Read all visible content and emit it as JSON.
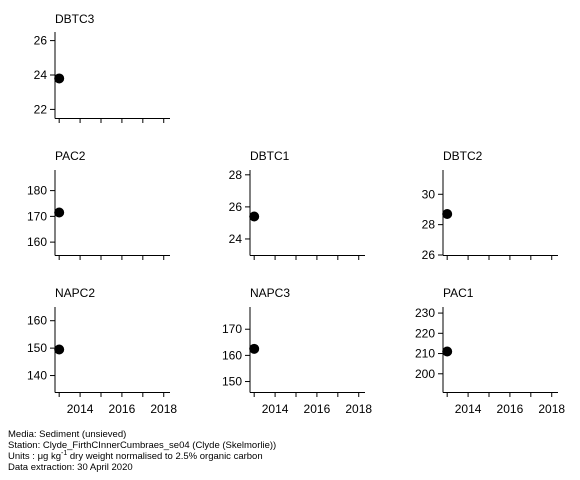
{
  "chart_data": [
    {
      "type": "scatter",
      "title": "DBTC3",
      "x": [
        2013
      ],
      "y": [
        23.8
      ],
      "ylim": [
        21.5,
        26.5
      ],
      "yticks": [
        22,
        24,
        26
      ],
      "xticks": [
        2014,
        2016,
        2018
      ],
      "xlim": [
        2012.8,
        2018.3
      ],
      "show_xtick_labels": false
    },
    {
      "type": "scatter",
      "title": "PAC2",
      "x": [
        2013
      ],
      "y": [
        171.5
      ],
      "ylim": [
        155,
        188
      ],
      "yticks": [
        160,
        170,
        180
      ],
      "xticks": [
        2014,
        2016,
        2018
      ],
      "xlim": [
        2012.8,
        2018.3
      ],
      "show_xtick_labels": false
    },
    {
      "type": "scatter",
      "title": "DBTC1",
      "x": [
        2013
      ],
      "y": [
        25.4
      ],
      "ylim": [
        23,
        28.3
      ],
      "yticks": [
        24,
        26,
        28
      ],
      "xticks": [
        2014,
        2016,
        2018
      ],
      "xlim": [
        2012.8,
        2018.3
      ],
      "show_xtick_labels": false
    },
    {
      "type": "scatter",
      "title": "DBTC2",
      "x": [
        2013
      ],
      "y": [
        28.7
      ],
      "ylim": [
        26,
        31.6
      ],
      "yticks": [
        26,
        28,
        30
      ],
      "xticks": [
        2014,
        2016,
        2018
      ],
      "xlim": [
        2012.8,
        2018.3
      ],
      "show_xtick_labels": false
    },
    {
      "type": "scatter",
      "title": "NAPC2",
      "x": [
        2013
      ],
      "y": [
        149.5
      ],
      "ylim": [
        134,
        165
      ],
      "yticks": [
        140,
        150,
        160
      ],
      "xticks": [
        2014,
        2016,
        2018
      ],
      "xlim": [
        2012.8,
        2018.3
      ],
      "show_xtick_labels": true
    },
    {
      "type": "scatter",
      "title": "NAPC3",
      "x": [
        2013
      ],
      "y": [
        162.5
      ],
      "ylim": [
        146,
        178.5
      ],
      "yticks": [
        150,
        160,
        170
      ],
      "xticks": [
        2014,
        2016,
        2018
      ],
      "xlim": [
        2012.8,
        2018.3
      ],
      "show_xtick_labels": true
    },
    {
      "type": "scatter",
      "title": "PAC1",
      "x": [
        2013
      ],
      "y": [
        211
      ],
      "ylim": [
        191,
        233
      ],
      "yticks": [
        200,
        210,
        220,
        230
      ],
      "xticks": [
        2014,
        2016,
        2018
      ],
      "xlim": [
        2012.8,
        2018.3
      ],
      "show_xtick_labels": true
    }
  ],
  "footer": {
    "media": "Media: Sediment (unsieved)",
    "station": "Station: Clyde_FirthCInnerCumbraes_se04 (Clyde (Skelmorlie))",
    "units_prefix": "Units : ",
    "units_mu": "μg kg",
    "units_sup": "-1",
    "units_suffix": " dry weight normalised to 2.5% organic carbon",
    "extraction": "Data extraction: 30 April 2020"
  }
}
